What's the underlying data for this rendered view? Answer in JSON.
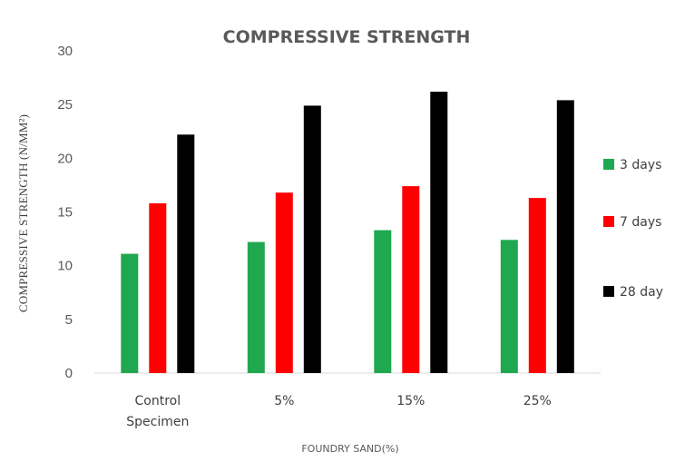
{
  "chart_data": {
    "type": "bar",
    "title": "COMPRESSIVE STRENGTH",
    "xlabel": "FOUNDRY SAND(%)",
    "ylabel": "COMPRESSIVE STRENGTH (N/MM²)",
    "categories": [
      [
        "Control",
        "Specimen"
      ],
      [
        "5%"
      ],
      [
        "15%"
      ],
      [
        "25%"
      ]
    ],
    "ylim": [
      0,
      30
    ],
    "yticks": [
      "0",
      "5",
      "10",
      "15",
      "20",
      "25",
      "30"
    ],
    "grid": false,
    "legend_position": "right",
    "series": [
      {
        "name": "3 days",
        "color": "#1fa84f",
        "values": [
          11.1,
          12.2,
          13.3,
          12.4
        ]
      },
      {
        "name": "7 days",
        "color": "#ff0000",
        "values": [
          15.8,
          16.8,
          17.4,
          16.3
        ]
      },
      {
        "name": "28 day",
        "color": "#000000",
        "values": [
          22.2,
          24.9,
          26.2,
          25.4
        ]
      }
    ]
  }
}
